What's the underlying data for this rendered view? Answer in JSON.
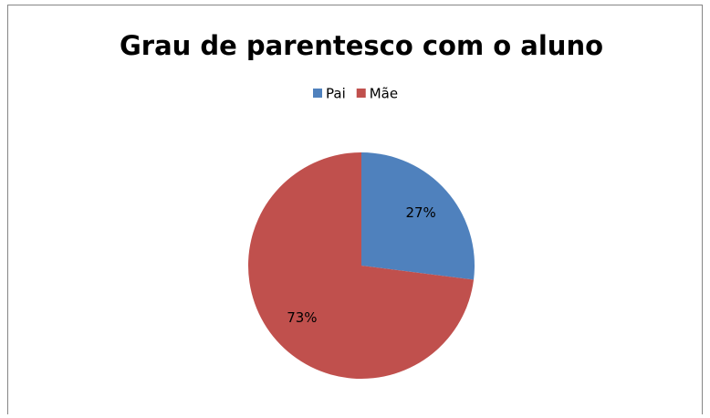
{
  "chart_data": {
    "type": "pie",
    "title": "Grau de parentesco com o aluno",
    "categories": [
      "Pai",
      "Mãe"
    ],
    "values": [
      27,
      73
    ],
    "value_labels": [
      "27%",
      "73%"
    ],
    "colors": [
      "#4f81bd",
      "#c0504d"
    ],
    "legend": "top"
  }
}
